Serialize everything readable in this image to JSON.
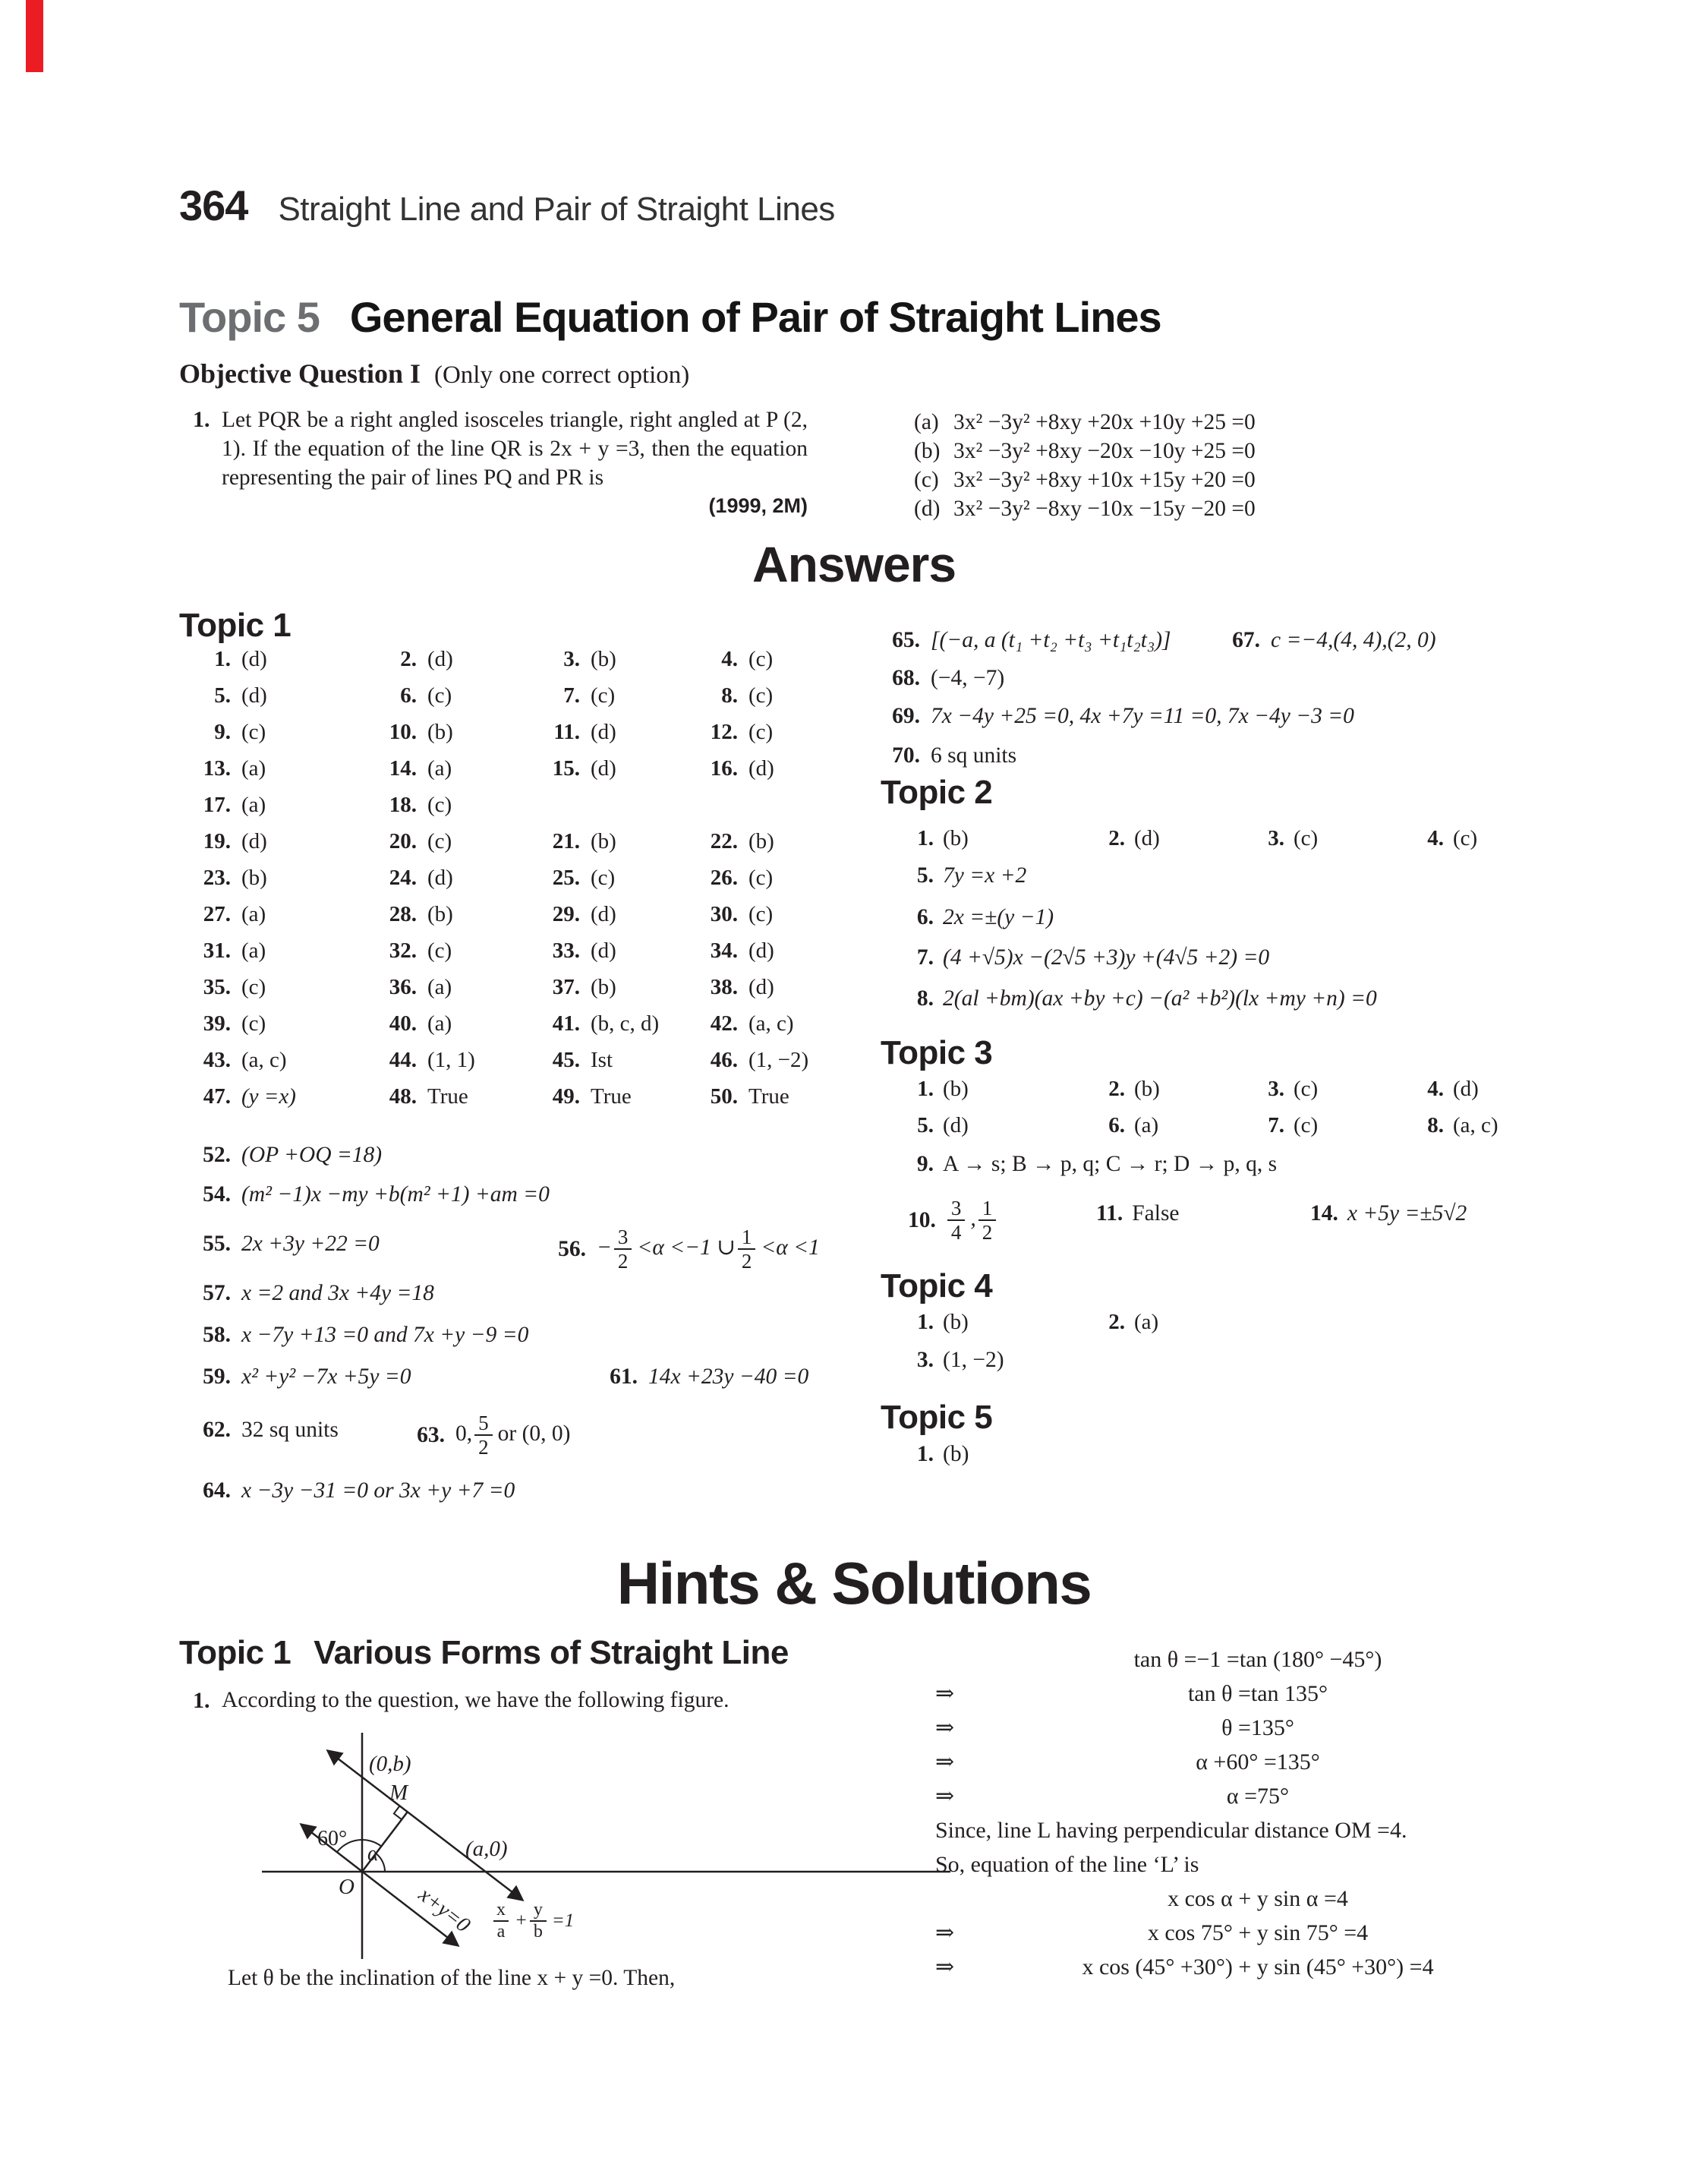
{
  "colors": {
    "accent_red": "#ec1c24",
    "topic_gray": "#6d6e71",
    "text": "#231f20"
  },
  "header": {
    "page_number": "364",
    "chapter_title": "Straight Line and Pair of Straight Lines"
  },
  "topic5": {
    "label": "Topic 5",
    "title": "General Equation of Pair of Straight Lines"
  },
  "objective": {
    "heading": "Objective Question I",
    "note": "(Only one correct option)"
  },
  "question": {
    "number": "1.",
    "text": "Let PQR be a right angled isosceles triangle, right angled at P (2, 1). If the equation of the line QR is 2x + y =3, then the equation representing the pair of lines PQ and PR is",
    "marks": "(1999, 2M)",
    "options": [
      {
        "n": "(a)",
        "v": "3x² −3y² +8xy +20x +10y +25 =0"
      },
      {
        "n": "(b)",
        "v": "3x² −3y² +8xy −20x −10y +25 =0"
      },
      {
        "n": "(c)",
        "v": "3x² −3y² +8xy +10x +15y +20 =0"
      },
      {
        "n": "(d)",
        "v": "3x² −3y² −8xy −10x −15y −20 =0"
      }
    ]
  },
  "answers": {
    "heading": "Answers",
    "t1": {
      "heading": "Topic 1",
      "grid": [
        {
          "n": "1.",
          "v": "(d)"
        },
        {
          "n": "2.",
          "v": "(d)"
        },
        {
          "n": "3.",
          "v": "(b)"
        },
        {
          "n": "4.",
          "v": "(c)"
        },
        {
          "n": "5.",
          "v": "(d)"
        },
        {
          "n": "6.",
          "v": "(c)"
        },
        {
          "n": "7.",
          "v": "(c)"
        },
        {
          "n": "8.",
          "v": "(c)"
        },
        {
          "n": "9.",
          "v": "(c)"
        },
        {
          "n": "10.",
          "v": "(b)"
        },
        {
          "n": "11.",
          "v": "(d)"
        },
        {
          "n": "12.",
          "v": "(c)"
        },
        {
          "n": "13.",
          "v": "(a)"
        },
        {
          "n": "14.",
          "v": "(a)"
        },
        {
          "n": "15.",
          "v": "(d)"
        },
        {
          "n": "16.",
          "v": "(d)"
        },
        {
          "n": "17.",
          "v": "(a)"
        },
        {
          "n": "18.",
          "v": "(c)"
        },
        {
          "n": "",
          "v": ""
        },
        {
          "n": "",
          "v": ""
        },
        {
          "n": "19.",
          "v": "(d)"
        },
        {
          "n": "20.",
          "v": "(c)"
        },
        {
          "n": "21.",
          "v": "(b)"
        },
        {
          "n": "22.",
          "v": "(b)"
        },
        {
          "n": "23.",
          "v": "(b)"
        },
        {
          "n": "24.",
          "v": "(d)"
        },
        {
          "n": "25.",
          "v": "(c)"
        },
        {
          "n": "26.",
          "v": "(c)"
        },
        {
          "n": "27.",
          "v": "(a)"
        },
        {
          "n": "28.",
          "v": "(b)"
        },
        {
          "n": "29.",
          "v": "(d)"
        },
        {
          "n": "30.",
          "v": "(c)"
        },
        {
          "n": "31.",
          "v": "(a)"
        },
        {
          "n": "32.",
          "v": "(c)"
        },
        {
          "n": "33.",
          "v": "(d)"
        },
        {
          "n": "34.",
          "v": "(d)"
        },
        {
          "n": "35.",
          "v": "(c)"
        },
        {
          "n": "36.",
          "v": "(a)"
        },
        {
          "n": "37.",
          "v": "(b)"
        },
        {
          "n": "38.",
          "v": "(d)"
        },
        {
          "n": "39.",
          "v": "(c)"
        },
        {
          "n": "40.",
          "v": "(a)"
        },
        {
          "n": "41.",
          "v": "(b, c, d)"
        },
        {
          "n": "42.",
          "v": "(a, c)"
        },
        {
          "n": "43.",
          "v": "(a, c)"
        },
        {
          "n": "44.",
          "v": "(1, 1)"
        },
        {
          "n": "45.",
          "v": "Ist"
        },
        {
          "n": "46.",
          "v": "(1, −2)"
        },
        {
          "n": "47.",
          "v": "(y =x)",
          "f": 1
        },
        {
          "n": "48.",
          "v": "True"
        },
        {
          "n": "49.",
          "v": "True"
        },
        {
          "n": "50.",
          "v": "True"
        }
      ],
      "w52": {
        "n": "52.",
        "v": "(OP +OQ =18)"
      },
      "w54": {
        "n": "54.",
        "v": "(m² −1)x −my +b(m² +1) +am =0"
      },
      "w55": {
        "n": "55.",
        "v": "2x +3y +22 =0"
      },
      "w56": {
        "n": "56.",
        "pre": "−",
        "f1n": "3",
        "f1d": "2",
        "mid": "<α <−1 ∪",
        "f2n": "1",
        "f2d": "2",
        "post": "<α <1"
      },
      "w57": {
        "n": "57.",
        "v": "x =2 and 3x +4y =18"
      },
      "w58": {
        "n": "58.",
        "v": "x −7y +13 =0 and 7x +y −9 =0"
      },
      "w59": {
        "n": "59.",
        "v": "x² +y² −7x +5y =0"
      },
      "w61": {
        "n": "61.",
        "v": "14x +23y −40 =0"
      },
      "w62": {
        "n": "62.",
        "v": "32 sq units"
      },
      "w63": {
        "n": "63.",
        "pre": "0,",
        "fn": "5",
        "fd": "2",
        "post": "or (0, 0)"
      },
      "w64": {
        "n": "64.",
        "v": "x −3y −31 =0 or 3x +y +7 =0"
      },
      "w65": {
        "n": "65.",
        "v": "[(−a, a (t₁ +t₂ +t₃ +t₁t₂t₃)]"
      },
      "w67": {
        "n": "67.",
        "v": "c =−4,(4, 4),(2, 0)"
      },
      "w68": {
        "n": "68.",
        "v": "(−4, −7)"
      },
      "w69": {
        "n": "69.",
        "v": "7x −4y +25 =0, 4x +7y =11 =0, 7x −4y −3 =0"
      },
      "w70": {
        "n": "70.",
        "v": "6 sq units"
      }
    },
    "t2": {
      "heading": "Topic 2",
      "grid": [
        {
          "n": "1.",
          "v": "(b)"
        },
        {
          "n": "2.",
          "v": "(d)"
        },
        {
          "n": "3.",
          "v": "(c)"
        },
        {
          "n": "4.",
          "v": "(c)"
        }
      ],
      "s5": {
        "n": "5.",
        "v": "7y =x +2"
      },
      "s6": {
        "n": "6.",
        "v": "2x =±(y −1)"
      },
      "s7": {
        "n": "7.",
        "v": "(4 +√5)x −(2√5 +3)y +(4√5 +2) =0"
      },
      "s8": {
        "n": "8.",
        "v": "2(al +bm)(ax +by +c) −(a² +b²)(lx +my +n) =0"
      }
    },
    "t3": {
      "heading": "Topic 3",
      "grid": [
        {
          "n": "1.",
          "v": "(b)"
        },
        {
          "n": "2.",
          "v": "(b)"
        },
        {
          "n": "3.",
          "v": "(c)"
        },
        {
          "n": "4.",
          "v": "(d)"
        },
        {
          "n": "5.",
          "v": "(d)"
        },
        {
          "n": "6.",
          "v": "(a)"
        },
        {
          "n": "7.",
          "v": "(c)"
        },
        {
          "n": "8.",
          "v": "(a, c)"
        }
      ],
      "s9": {
        "n": "9.",
        "v": "A → s; B → p, q; C → r; D → p, q, s"
      },
      "s10": {
        "n": "10.",
        "f1n": "3",
        "f1d": "4",
        "comma": ",",
        "f2n": "1",
        "f2d": "2"
      },
      "s11": {
        "n": "11.",
        "v": "False"
      },
      "s14": {
        "n": "14.",
        "v": "x +5y =±5√2"
      }
    },
    "t4": {
      "heading": "Topic 4",
      "grid": [
        {
          "n": "1.",
          "v": "(b)"
        },
        {
          "n": "2.",
          "v": "(a)"
        }
      ],
      "s3": {
        "n": "3.",
        "v": "(1, −2)"
      }
    },
    "t5": {
      "heading": "Topic 5",
      "s1": {
        "n": "1.",
        "v": "(b)"
      }
    }
  },
  "hints": {
    "heading": "Hints & Solutions",
    "t1_heading": "Topic 1",
    "t1_title": "Various Forms of Straight Line",
    "step": {
      "n": "1.",
      "text": "According to the question, we have the following figure."
    },
    "figure": {
      "label_0b": "(0,b)",
      "label_M": "M",
      "label_60": "60°",
      "label_alpha": "α",
      "label_O": "O",
      "label_a0": "(a,0)",
      "label_line": "x+y=0",
      "frac": {
        "n1": "x",
        "d1": "a",
        "op": "+",
        "n2": "y",
        "d2": "b",
        "rhs": "=1"
      }
    },
    "caption": "Let θ be the inclination of the line x + y =0. Then,",
    "steps": [
      {
        "n": "",
        "v": "tan θ =−1 =tan (180° −45°)"
      },
      {
        "n": "⇒",
        "v": "tan θ =tan 135°"
      },
      {
        "n": "⇒",
        "v": "θ =135°"
      },
      {
        "n": "⇒",
        "v": "α +60° =135°"
      },
      {
        "n": "⇒",
        "v": "α =75°"
      },
      {
        "n": "",
        "v": "Since, line L having perpendicular distance OM =4.",
        "k": "prose"
      },
      {
        "n": "",
        "v": "So, equation of the line ‘L’ is",
        "k": "prose"
      },
      {
        "n": "",
        "v": "x cos α + y sin α =4"
      },
      {
        "n": "⇒",
        "v": "x cos 75° + y sin 75° =4"
      },
      {
        "n": "⇒",
        "v": "x cos (45° +30°) + y sin (45° +30°) =4"
      }
    ]
  }
}
